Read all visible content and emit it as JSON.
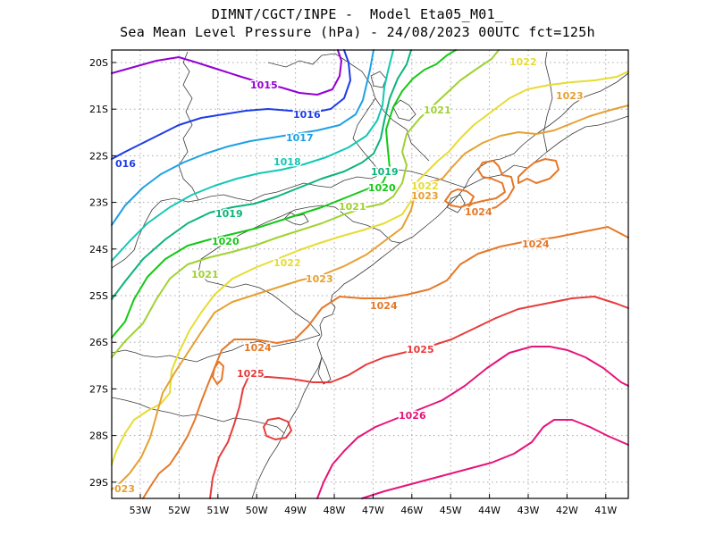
{
  "title": {
    "line1": "DIMNT/CGCT/INPE -  Model Eta05_M01_",
    "line2": "Sea Mean Level Pressure (hPa) - 24/08/2023 00UTC fct=125h"
  },
  "axes": {
    "lat_labels": [
      "20S",
      "21S",
      "22S",
      "23S",
      "24S",
      "25S",
      "26S",
      "27S",
      "28S",
      "29S"
    ],
    "lon_labels": [
      "53W",
      "52W",
      "51W",
      "50W",
      "49W",
      "48W",
      "47W",
      "46W",
      "45W",
      "44W",
      "43W",
      "42W",
      "41W"
    ]
  },
  "contours": [
    {
      "level": "1015",
      "color": "#9400d3"
    },
    {
      "level": "1016",
      "color": "#1e3ce6"
    },
    {
      "level": "1017",
      "color": "#1ea0e6"
    },
    {
      "level": "1018",
      "color": "#12c8b4"
    },
    {
      "level": "1019",
      "color": "#0ab478"
    },
    {
      "level": "1020",
      "color": "#14c814"
    },
    {
      "level": "1021",
      "color": "#a0d232"
    },
    {
      "level": "1022",
      "color": "#e6dc32"
    },
    {
      "level": "1023",
      "color": "#e6a032"
    },
    {
      "level": "1024",
      "color": "#e67828"
    },
    {
      "level": "1025",
      "color": "#e63c3c"
    },
    {
      "level": "1026",
      "color": "#e6147a"
    }
  ],
  "contour_labels": [
    {
      "text": "1015",
      "level": "1015"
    },
    {
      "text": "1016",
      "level": "1016"
    },
    {
      "text": "016",
      "level": "1016"
    },
    {
      "text": "1017",
      "level": "1017"
    },
    {
      "text": "1018",
      "level": "1018"
    },
    {
      "text": "1019",
      "level": "1019"
    },
    {
      "text": "1019",
      "level": "1019"
    },
    {
      "text": "1020",
      "level": "1020"
    },
    {
      "text": "1020",
      "level": "1020"
    },
    {
      "text": "1021",
      "level": "1021"
    },
    {
      "text": "1021",
      "level": "1021"
    },
    {
      "text": "1021",
      "level": "1021"
    },
    {
      "text": "1022",
      "level": "1022"
    },
    {
      "text": "1022",
      "level": "1022"
    },
    {
      "text": "1022",
      "level": "1022"
    },
    {
      "text": "1023",
      "level": "1023"
    },
    {
      "text": "1023",
      "level": "1023"
    },
    {
      "text": "1023",
      "level": "1023"
    },
    {
      "text": "023",
      "level": "1023"
    },
    {
      "text": "1024",
      "level": "1024"
    },
    {
      "text": "1024",
      "level": "1024"
    },
    {
      "text": "1024",
      "level": "1024"
    },
    {
      "text": "1024",
      "level": "1024"
    },
    {
      "text": "1025",
      "level": "1025"
    },
    {
      "text": "1025",
      "level": "1025"
    },
    {
      "text": "1026",
      "level": "1026"
    }
  ]
}
